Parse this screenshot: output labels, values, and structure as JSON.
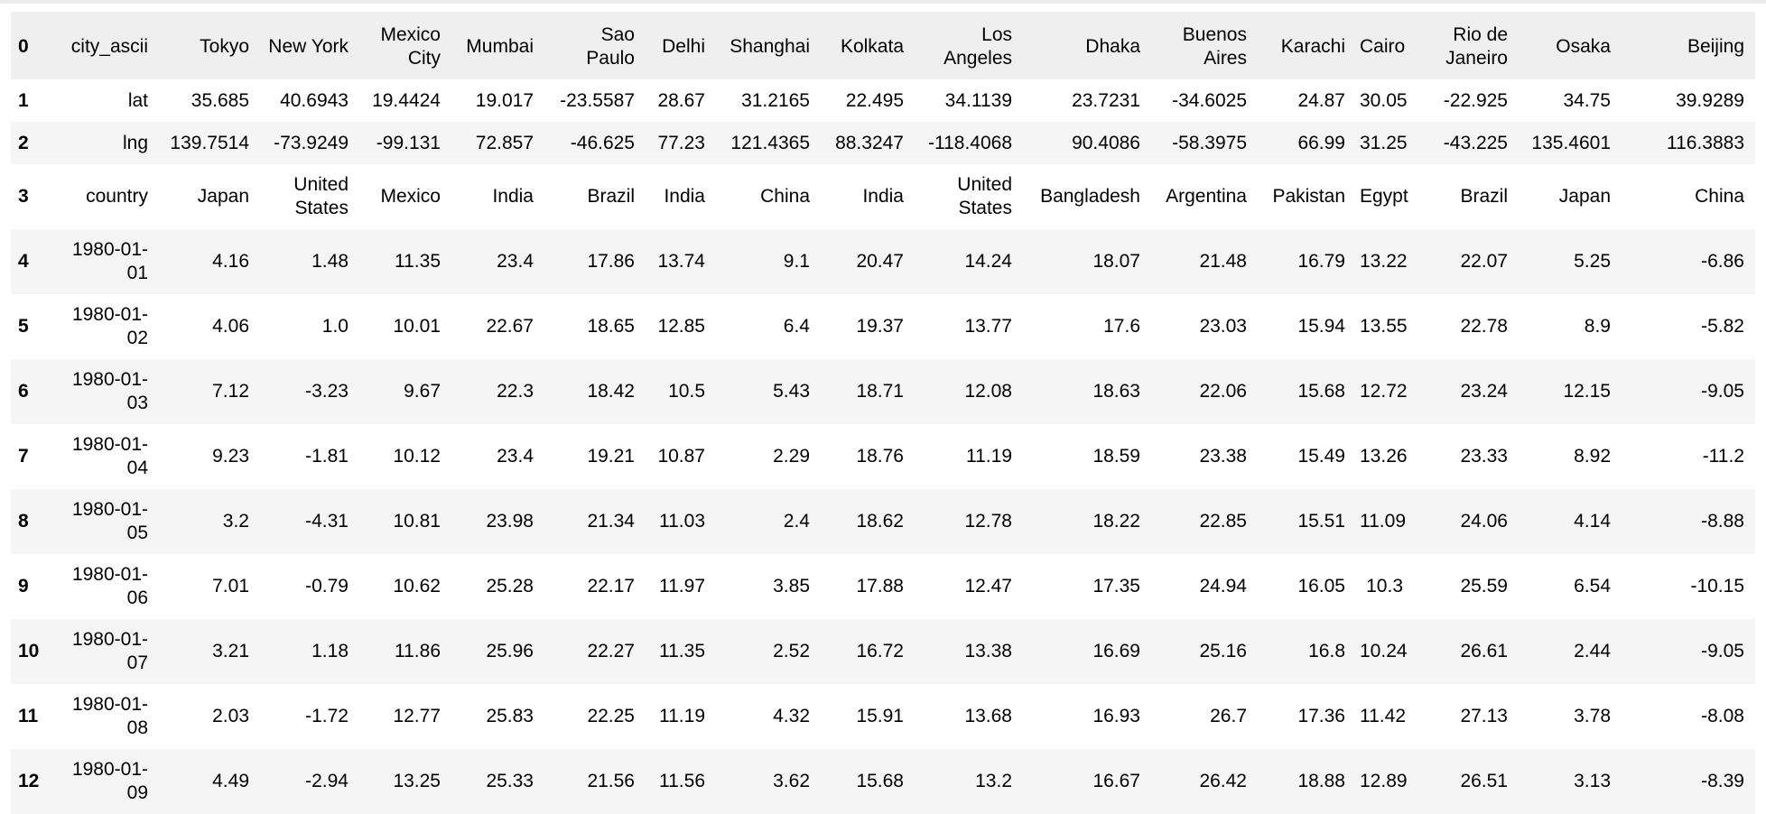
{
  "dataframe": {
    "rows": [
      {
        "index": "0",
        "cells": [
          "city_ascii",
          "Tokyo",
          "New York",
          "Mexico City",
          "Mumbai",
          "Sao Paulo",
          "Delhi",
          "Shanghai",
          "Kolkata",
          "Los Angeles",
          "Dhaka",
          "Buenos Aires",
          "Karachi",
          "Cairo",
          "Rio de Janeiro",
          "Osaka",
          "Beijing"
        ]
      },
      {
        "index": "1",
        "cells": [
          "lat",
          "35.685",
          "40.6943",
          "19.4424",
          "19.017",
          "-23.5587",
          "28.67",
          "31.2165",
          "22.495",
          "34.1139",
          "23.7231",
          "-34.6025",
          "24.87",
          "30.05",
          "-22.925",
          "34.75",
          "39.9289"
        ]
      },
      {
        "index": "2",
        "cells": [
          "lng",
          "139.7514",
          "-73.9249",
          "-99.131",
          "72.857",
          "-46.625",
          "77.23",
          "121.4365",
          "88.3247",
          "-118.4068",
          "90.4086",
          "-58.3975",
          "66.99",
          "31.25",
          "-43.225",
          "135.4601",
          "116.3883"
        ]
      },
      {
        "index": "3",
        "cells": [
          "country",
          "Japan",
          "United States",
          "Mexico",
          "India",
          "Brazil",
          "India",
          "China",
          "India",
          "United States",
          "Bangladesh",
          "Argentina",
          "Pakistan",
          "Egypt",
          "Brazil",
          "Japan",
          "China"
        ]
      },
      {
        "index": "4",
        "cells": [
          "1980-01-01",
          "4.16",
          "1.48",
          "11.35",
          "23.4",
          "17.86",
          "13.74",
          "9.1",
          "20.47",
          "14.24",
          "18.07",
          "21.48",
          "16.79",
          "13.22",
          "22.07",
          "5.25",
          "-6.86"
        ]
      },
      {
        "index": "5",
        "cells": [
          "1980-01-02",
          "4.06",
          "1.0",
          "10.01",
          "22.67",
          "18.65",
          "12.85",
          "6.4",
          "19.37",
          "13.77",
          "17.6",
          "23.03",
          "15.94",
          "13.55",
          "22.78",
          "8.9",
          "-5.82"
        ]
      },
      {
        "index": "6",
        "cells": [
          "1980-01-03",
          "7.12",
          "-3.23",
          "9.67",
          "22.3",
          "18.42",
          "10.5",
          "5.43",
          "18.71",
          "12.08",
          "18.63",
          "22.06",
          "15.68",
          "12.72",
          "23.24",
          "12.15",
          "-9.05"
        ]
      },
      {
        "index": "7",
        "cells": [
          "1980-01-04",
          "9.23",
          "-1.81",
          "10.12",
          "23.4",
          "19.21",
          "10.87",
          "2.29",
          "18.76",
          "11.19",
          "18.59",
          "23.38",
          "15.49",
          "13.26",
          "23.33",
          "8.92",
          "-11.2"
        ]
      },
      {
        "index": "8",
        "cells": [
          "1980-01-05",
          "3.2",
          "-4.31",
          "10.81",
          "23.98",
          "21.34",
          "11.03",
          "2.4",
          "18.62",
          "12.78",
          "18.22",
          "22.85",
          "15.51",
          "11.09",
          "24.06",
          "4.14",
          "-8.88"
        ]
      },
      {
        "index": "9",
        "cells": [
          "1980-01-06",
          "7.01",
          "-0.79",
          "10.62",
          "25.28",
          "22.17",
          "11.97",
          "3.85",
          "17.88",
          "12.47",
          "17.35",
          "24.94",
          "16.05",
          "10.3",
          "25.59",
          "6.54",
          "-10.15"
        ]
      },
      {
        "index": "10",
        "cells": [
          "1980-01-07",
          "3.21",
          "1.18",
          "11.86",
          "25.96",
          "22.27",
          "11.35",
          "2.52",
          "16.72",
          "13.38",
          "16.69",
          "25.16",
          "16.8",
          "10.24",
          "26.61",
          "2.44",
          "-9.05"
        ]
      },
      {
        "index": "11",
        "cells": [
          "1980-01-08",
          "2.03",
          "-1.72",
          "12.77",
          "25.83",
          "22.25",
          "11.19",
          "4.32",
          "15.91",
          "13.68",
          "16.93",
          "26.7",
          "17.36",
          "11.42",
          "27.13",
          "3.78",
          "-8.08"
        ]
      },
      {
        "index": "12",
        "cells": [
          "1980-01-09",
          "4.49",
          "-2.94",
          "13.25",
          "25.33",
          "21.56",
          "11.56",
          "3.62",
          "15.68",
          "13.2",
          "16.67",
          "26.42",
          "18.88",
          "12.89",
          "26.51",
          "3.13",
          "-8.39"
        ]
      }
    ]
  }
}
